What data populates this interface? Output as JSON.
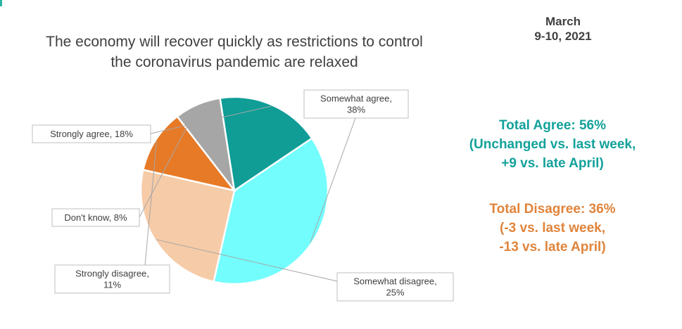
{
  "header": {
    "date_line1": "March",
    "date_line2": "9-10, 2021",
    "title_line1": "The economy will recover quickly as restrictions to control",
    "title_line2": "the coronavirus pandemic are relaxed"
  },
  "chart_data": {
    "type": "pie",
    "title": "The economy will recover quickly as restrictions to control the coronavirus pandemic are relaxed",
    "slices": [
      {
        "name": "Somewhat agree",
        "value": 38,
        "label_lines": [
          "Somewhat agree,",
          "38%"
        ],
        "color": "#73fdfd"
      },
      {
        "name": "Somewhat disagree",
        "value": 25,
        "label_lines": [
          "Somewhat disagree,",
          "25%"
        ],
        "color": "#f6cba7"
      },
      {
        "name": "Strongly disagree",
        "value": 11,
        "label_lines": [
          "Strongly disagree,",
          "11%"
        ],
        "color": "#e77a27"
      },
      {
        "name": "Don't know",
        "value": 8,
        "label_lines": [
          "Don't know, 8%"
        ],
        "color": "#a6a6a6"
      },
      {
        "name": "Strongly agree",
        "value": 18,
        "label_lines": [
          "Strongly agree, 18%"
        ],
        "color": "#0f9d96"
      }
    ]
  },
  "summary": {
    "agree_line1": "Total Agree: 56%",
    "agree_line2": "(Unchanged vs. last week,",
    "agree_line3": "+9 vs. late April)",
    "agree_color": "#13a19b",
    "disagree_line1": "Total Disagree: 36%",
    "disagree_line2": "(-3 vs. last week,",
    "disagree_line3": "-13 vs. late April)",
    "disagree_color": "#e0843b"
  }
}
